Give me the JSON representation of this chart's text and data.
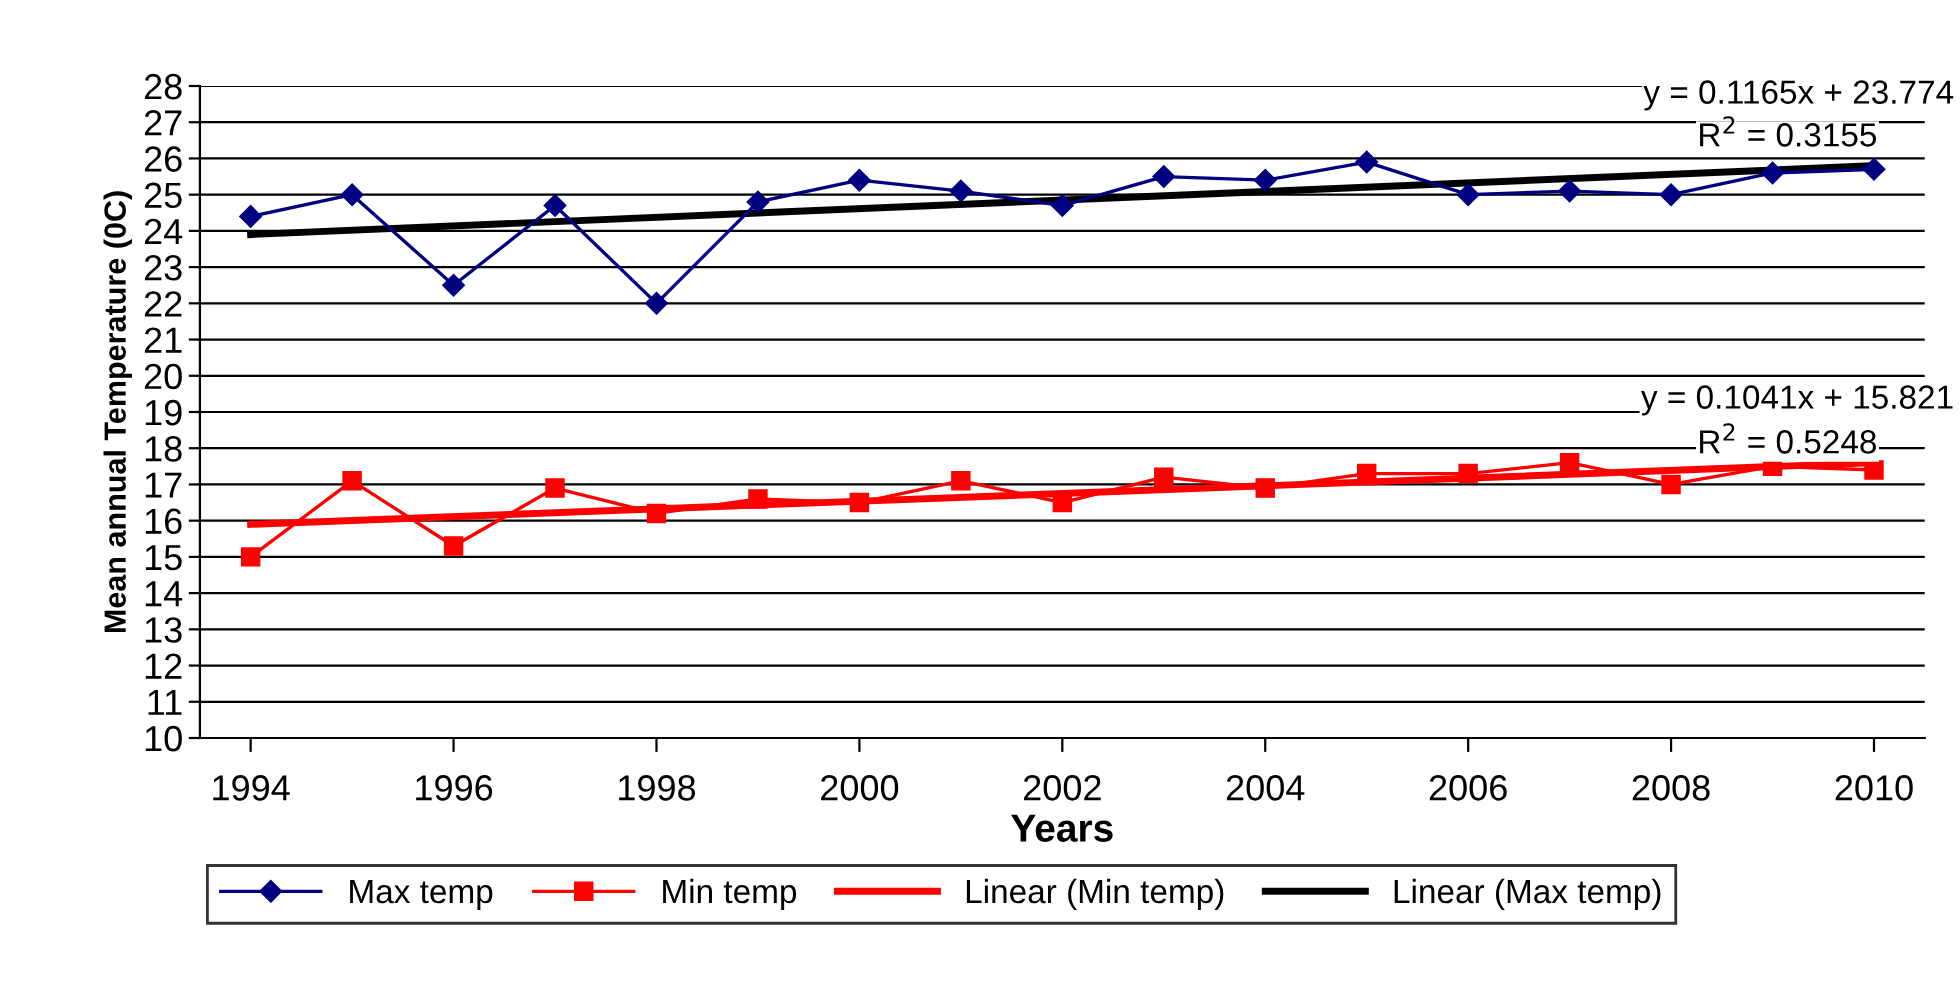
{
  "chart_data": {
    "type": "line",
    "xlabel": "Years",
    "ylabel": "Mean annual Temperature (0C)",
    "x": [
      1994,
      1995,
      1996,
      1997,
      1998,
      1999,
      2000,
      2001,
      2002,
      2003,
      2004,
      2005,
      2006,
      2007,
      2008,
      2009,
      2010
    ],
    "series": [
      {
        "name": "Max temp",
        "color": "#000080",
        "marker": "diamond",
        "values": [
          24.4,
          25.0,
          22.5,
          24.7,
          22.0,
          24.8,
          25.4,
          25.1,
          24.7,
          25.5,
          25.4,
          25.9,
          25.0,
          25.1,
          25.0,
          25.6,
          25.7
        ]
      },
      {
        "name": "Min temp",
        "color": "#ff0000",
        "marker": "square",
        "values": [
          15.0,
          17.1,
          15.3,
          16.9,
          16.2,
          16.6,
          16.5,
          17.1,
          16.5,
          17.2,
          16.9,
          17.3,
          17.3,
          17.6,
          17.0,
          17.5,
          17.4
        ]
      },
      {
        "name": "Linear (Min temp)",
        "color": "#ff0000",
        "marker": "none",
        "values": [
          15.9,
          null,
          null,
          null,
          null,
          null,
          null,
          null,
          null,
          null,
          null,
          null,
          null,
          null,
          null,
          null,
          17.6
        ]
      },
      {
        "name": "Linear (Max temp)",
        "color": "#000000",
        "marker": "none",
        "values": [
          23.9,
          null,
          null,
          null,
          null,
          null,
          null,
          null,
          null,
          null,
          null,
          null,
          null,
          null,
          null,
          null,
          25.8
        ]
      }
    ],
    "annotations": [
      "y = 0.1165x + 23.774",
      "R$^{2}$ = 0.3155",
      "y = 0.1041x + 15.821",
      "R$^{2}$ = 0.5248"
    ],
    "xlim": [
      1993.5,
      2010.5
    ],
    "xticks": [
      1994,
      1996,
      1998,
      2000,
      2002,
      2004,
      2006,
      2008,
      2010
    ],
    "ylim": [
      10,
      28
    ],
    "yticks": [
      10,
      11,
      12,
      13,
      14,
      15,
      16,
      17,
      18,
      19,
      20,
      21,
      22,
      23,
      24,
      25,
      26,
      27,
      28
    ],
    "grid": "y",
    "legend": "bottom",
    "line_style": "solid"
  }
}
